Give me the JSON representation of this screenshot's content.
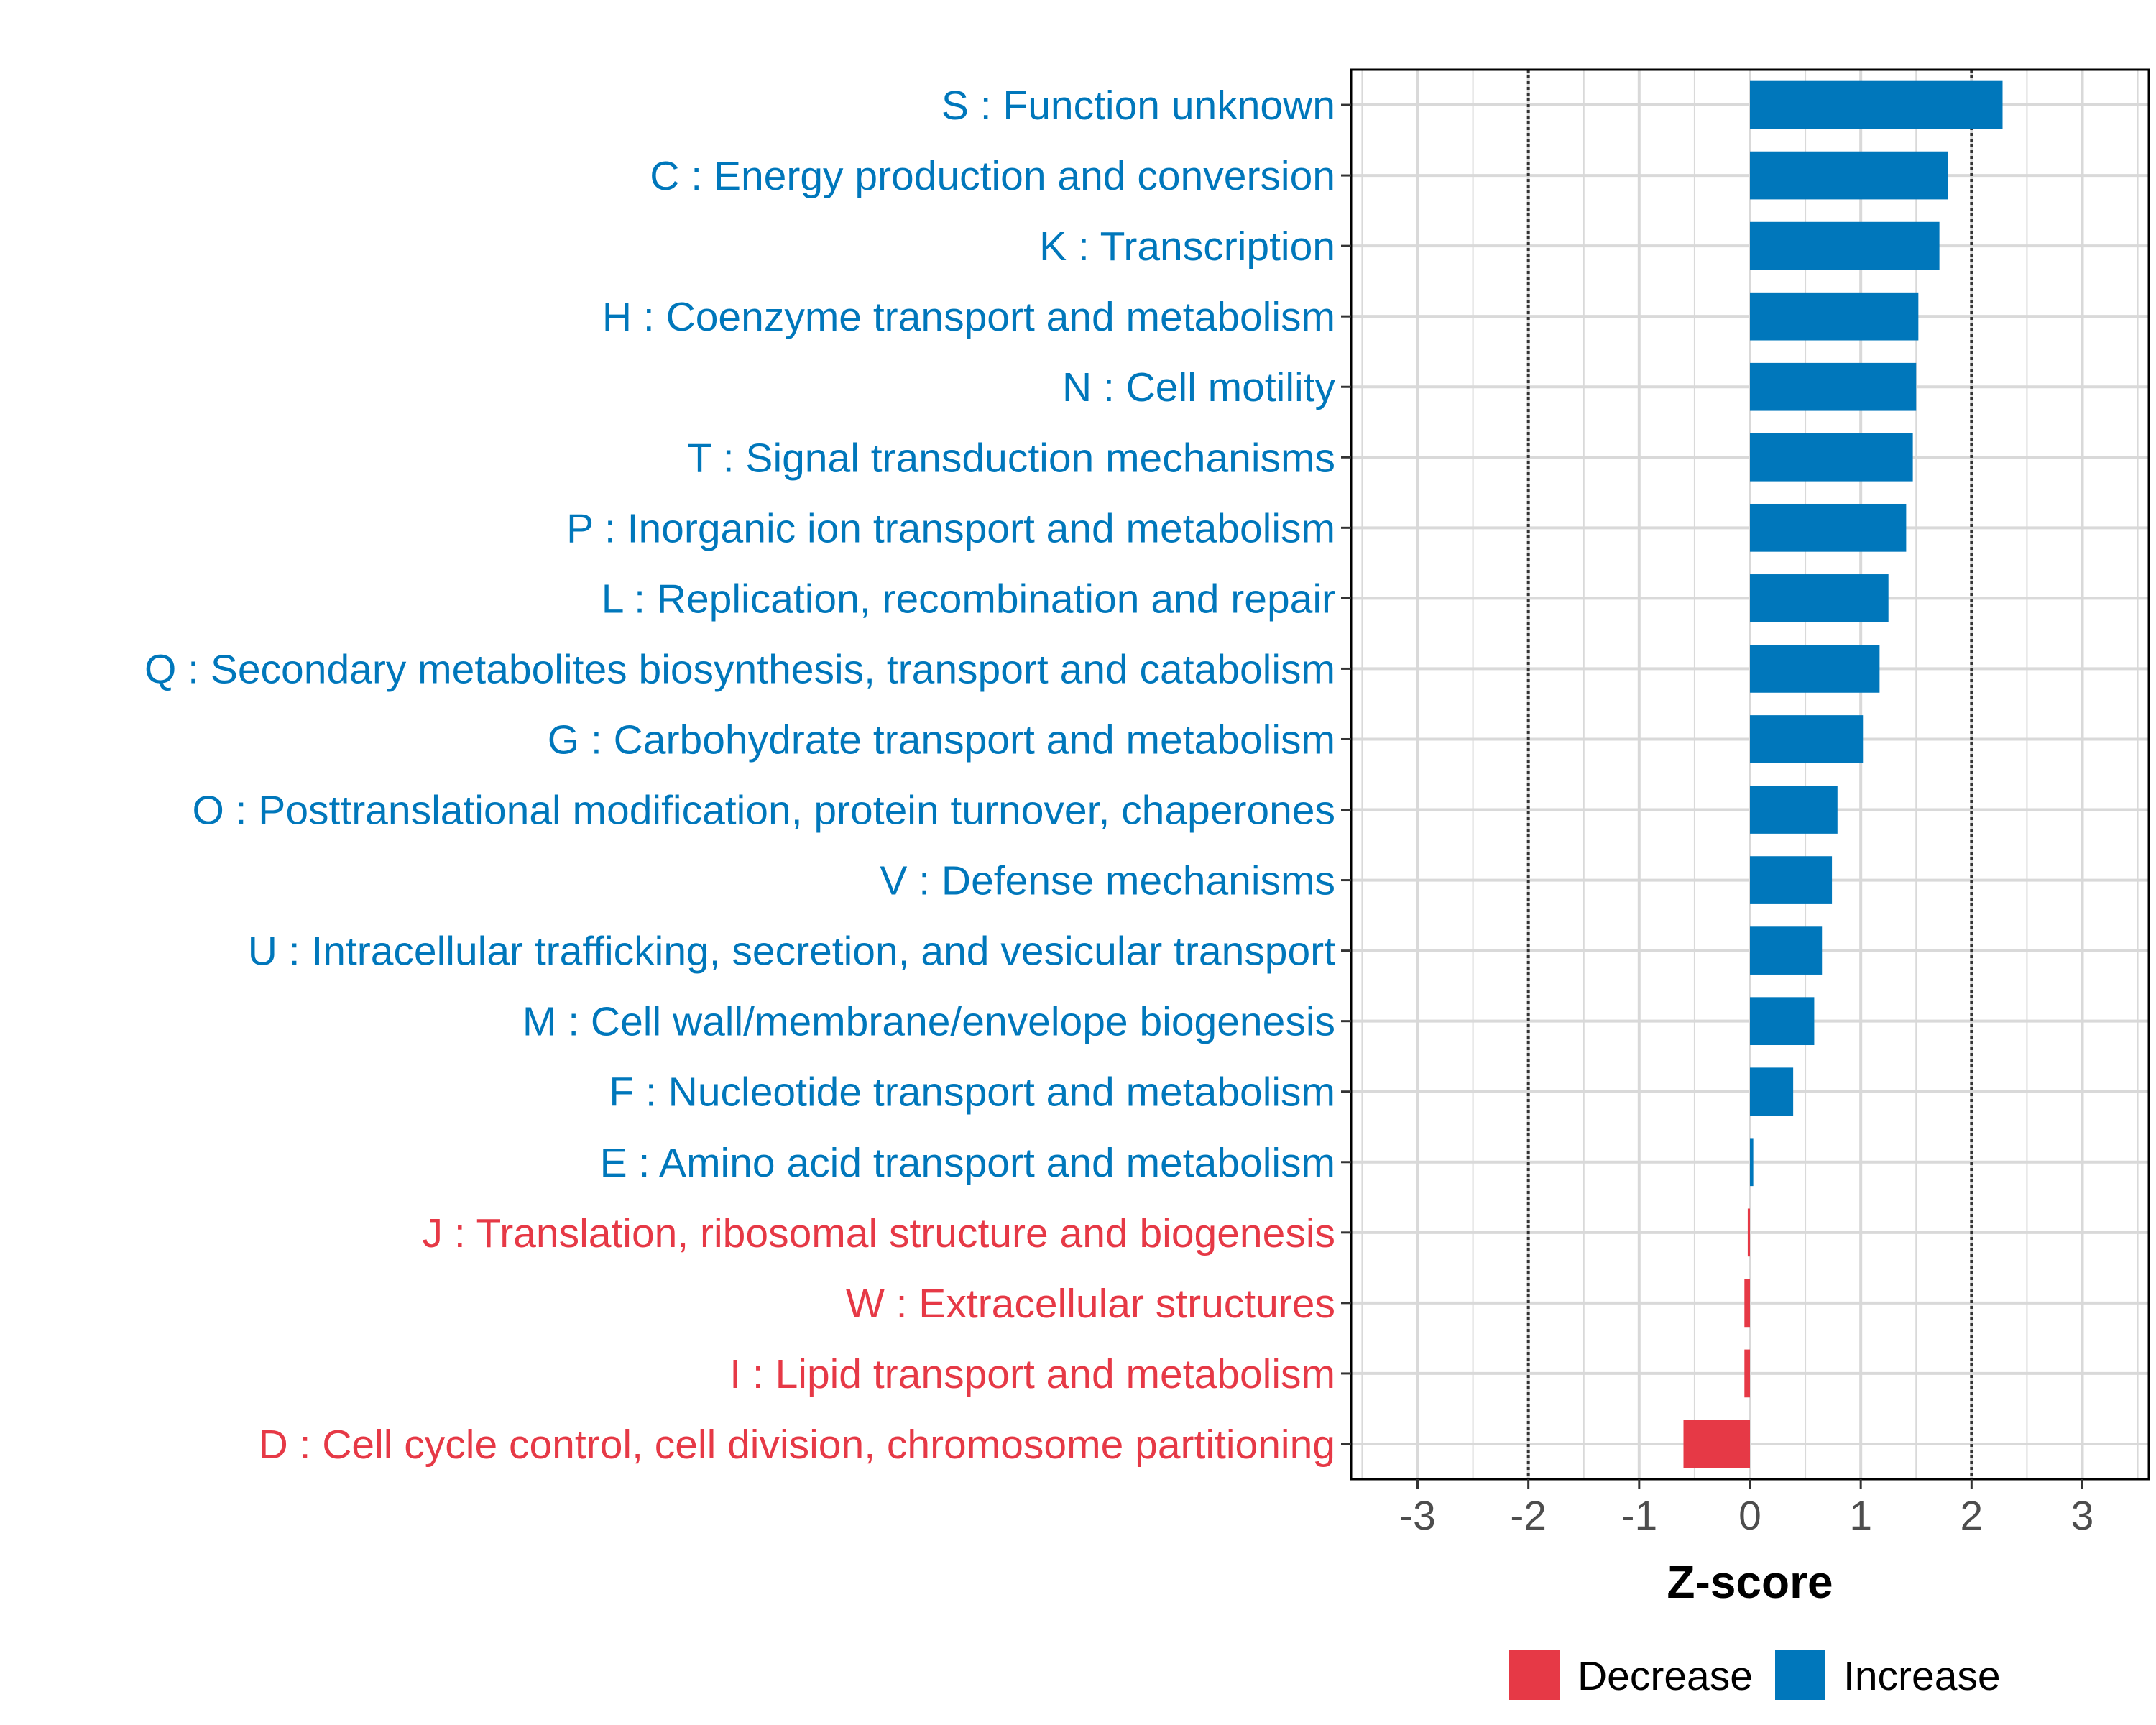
{
  "chart_data": {
    "type": "bar",
    "orientation": "horizontal",
    "xlabel": "Z-score",
    "ylabel": "",
    "xlim": [
      -3.6,
      3.6
    ],
    "x_ticks": [
      -3,
      -2,
      -1,
      0,
      1,
      2,
      3
    ],
    "x_tick_labels": [
      "-3",
      "-2",
      "-1",
      "0",
      "1",
      "2",
      "3"
    ],
    "reference_lines": [
      -2,
      2
    ],
    "grid": true,
    "legend_position": "bottom",
    "colors": {
      "Decrease": "#E63946",
      "Increase": "#0077BB"
    },
    "legend": [
      {
        "label": "Decrease",
        "color": "#E63946"
      },
      {
        "label": "Increase",
        "color": "#0077BB"
      }
    ],
    "categories": [
      {
        "label": "S : Function unknown",
        "value": 2.28,
        "direction": "Increase"
      },
      {
        "label": "C : Energy production and conversion",
        "value": 1.79,
        "direction": "Increase"
      },
      {
        "label": "K : Transcription",
        "value": 1.71,
        "direction": "Increase"
      },
      {
        "label": "H : Coenzyme transport and metabolism",
        "value": 1.52,
        "direction": "Increase"
      },
      {
        "label": "N : Cell motility",
        "value": 1.5,
        "direction": "Increase"
      },
      {
        "label": "T : Signal transduction mechanisms",
        "value": 1.47,
        "direction": "Increase"
      },
      {
        "label": "P : Inorganic ion transport and metabolism",
        "value": 1.41,
        "direction": "Increase"
      },
      {
        "label": "L : Replication, recombination and repair",
        "value": 1.25,
        "direction": "Increase"
      },
      {
        "label": "Q : Secondary metabolites biosynthesis, transport and catabolism",
        "value": 1.17,
        "direction": "Increase"
      },
      {
        "label": "G : Carbohydrate transport and metabolism",
        "value": 1.02,
        "direction": "Increase"
      },
      {
        "label": "O : Posttranslational modification, protein turnover, chaperones",
        "value": 0.79,
        "direction": "Increase"
      },
      {
        "label": "V : Defense mechanisms",
        "value": 0.74,
        "direction": "Increase"
      },
      {
        "label": "U : Intracellular trafficking, secretion, and vesicular transport",
        "value": 0.65,
        "direction": "Increase"
      },
      {
        "label": "M : Cell wall/membrane/envelope biogenesis",
        "value": 0.58,
        "direction": "Increase"
      },
      {
        "label": "F : Nucleotide transport and metabolism",
        "value": 0.39,
        "direction": "Increase"
      },
      {
        "label": "E : Amino acid transport and metabolism",
        "value": 0.03,
        "direction": "Increase"
      },
      {
        "label": "J : Translation, ribosomal structure and biogenesis",
        "value": -0.02,
        "direction": "Decrease"
      },
      {
        "label": "W : Extracellular structures",
        "value": -0.05,
        "direction": "Decrease"
      },
      {
        "label": "I : Lipid transport and metabolism",
        "value": -0.05,
        "direction": "Decrease"
      },
      {
        "label": "D : Cell cycle control, cell division, chromosome partitioning",
        "value": -0.6,
        "direction": "Decrease"
      }
    ]
  }
}
